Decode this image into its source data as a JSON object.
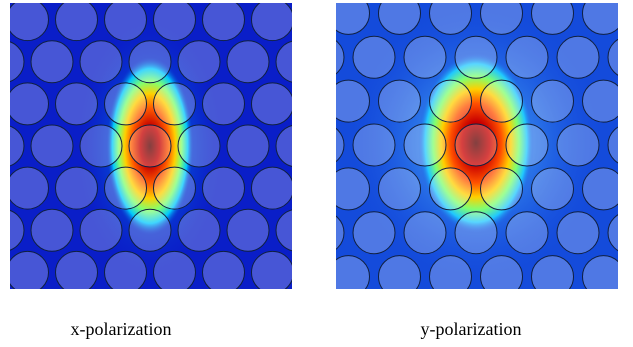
{
  "panels": [
    {
      "id": "x",
      "caption": "x-polarization",
      "background": "#0a1ec8"
    },
    {
      "id": "y",
      "caption": "y-polarization",
      "background": "#1e5ae6"
    }
  ],
  "colormap": [
    "#00008b",
    "#0040ff",
    "#00c0ff",
    "#40ff80",
    "#ffff00",
    "#ff6000",
    "#c00000",
    "#600000"
  ]
}
